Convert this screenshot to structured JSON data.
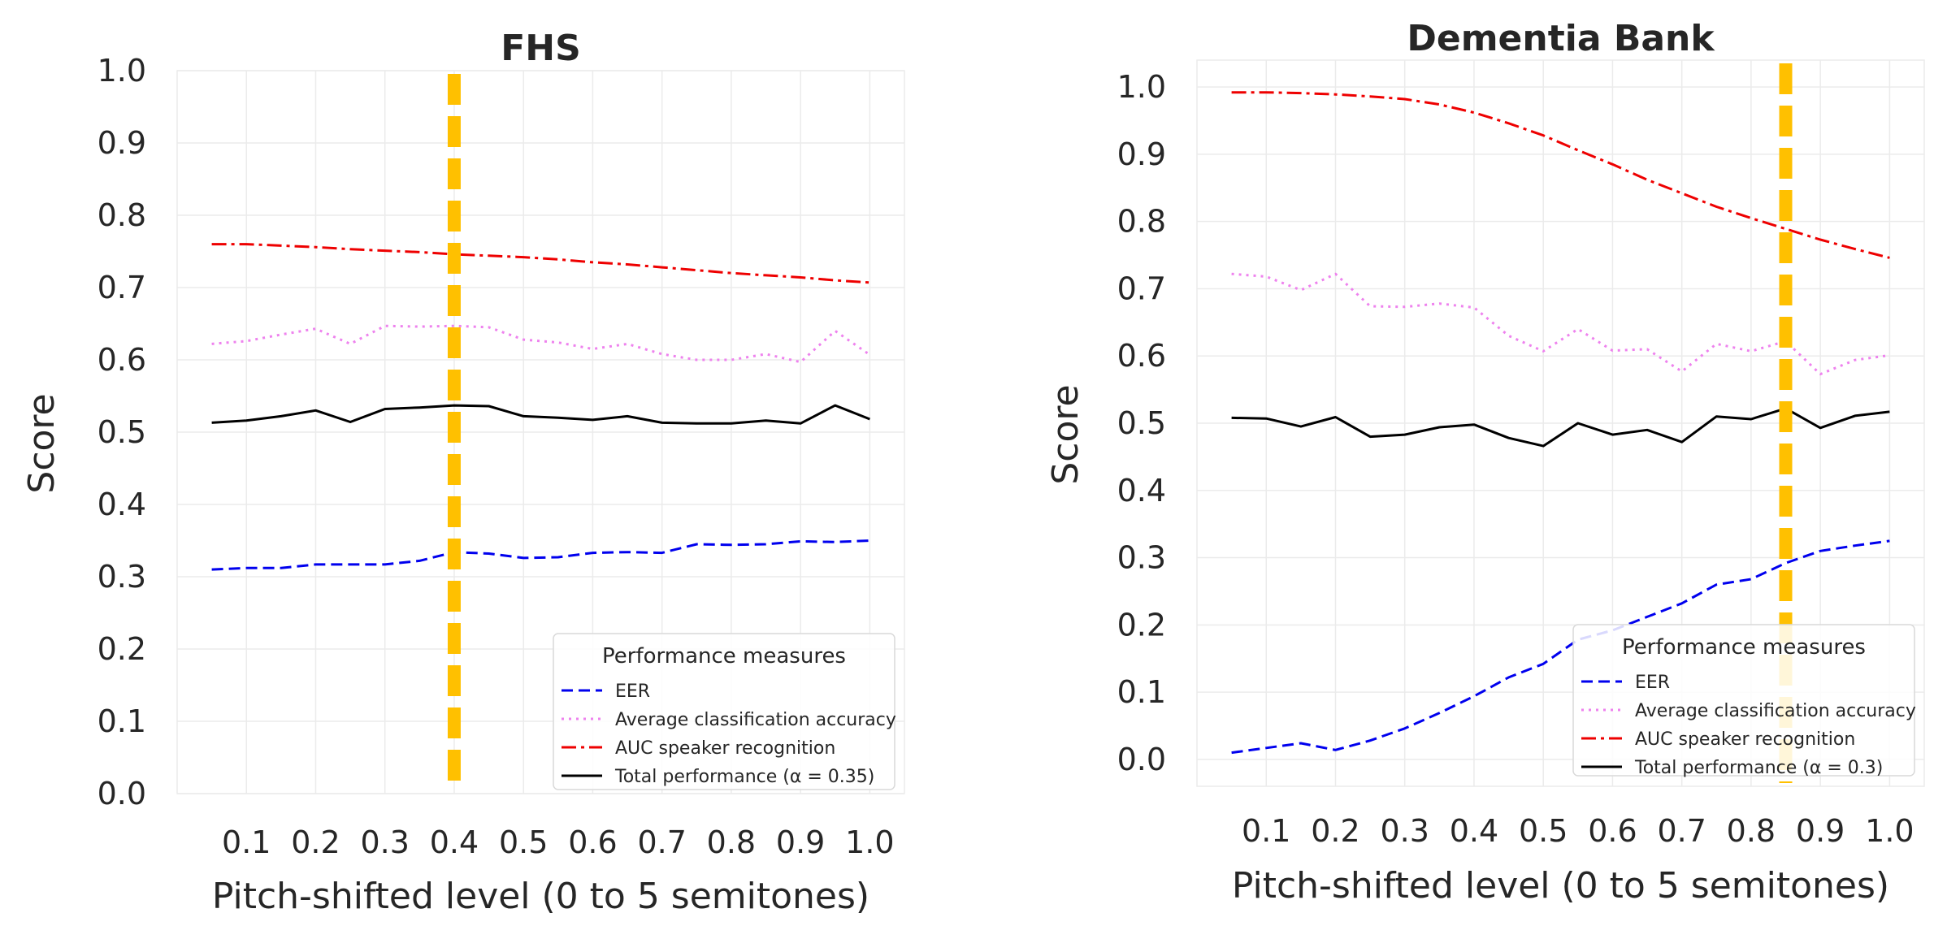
{
  "chart_data": [
    {
      "type": "line",
      "title": "FHS",
      "xlabel": "Pitch-shifted level (0 to 5 semitones)",
      "ylabel": "Score",
      "xlim": [
        0.0,
        1.05
      ],
      "ylim": [
        0.0,
        1.0
      ],
      "grid": true,
      "xticks": [
        "0.1",
        "0.2",
        "0.3",
        "0.4",
        "0.5",
        "0.6",
        "0.7",
        "0.8",
        "0.9",
        "1.0"
      ],
      "yticks": [
        "0.0",
        "0.1",
        "0.2",
        "0.3",
        "0.4",
        "0.5",
        "0.6",
        "0.7",
        "0.8",
        "0.9",
        "1.0"
      ],
      "x": [
        0.05,
        0.1,
        0.15,
        0.2,
        0.25,
        0.3,
        0.35,
        0.4,
        0.45,
        0.5,
        0.55,
        0.6,
        0.65,
        0.7,
        0.75,
        0.8,
        0.85,
        0.9,
        0.95,
        1.0
      ],
      "series": [
        {
          "name": "EER",
          "color": "#0000ee",
          "dash": "dashed",
          "values": [
            0.31,
            0.312,
            0.312,
            0.317,
            0.317,
            0.317,
            0.322,
            0.334,
            0.332,
            0.326,
            0.327,
            0.333,
            0.334,
            0.333,
            0.345,
            0.344,
            0.345,
            0.349,
            0.348,
            0.35
          ]
        },
        {
          "name": "Average classification accuracy",
          "color": "#ee82ee",
          "dash": "dotted",
          "values": [
            0.622,
            0.626,
            0.635,
            0.643,
            0.622,
            0.647,
            0.646,
            0.647,
            0.645,
            0.628,
            0.624,
            0.615,
            0.622,
            0.608,
            0.6,
            0.6,
            0.608,
            0.597,
            0.64,
            0.607
          ]
        },
        {
          "name": "AUC speaker recognition",
          "color": "#ee0000",
          "dash": "dashdot",
          "values": [
            0.76,
            0.76,
            0.758,
            0.756,
            0.753,
            0.751,
            0.749,
            0.746,
            0.744,
            0.742,
            0.739,
            0.735,
            0.732,
            0.728,
            0.724,
            0.72,
            0.717,
            0.714,
            0.71,
            0.707
          ]
        },
        {
          "name": "Total performance (α = 0.35)",
          "color": "#000000",
          "dash": "solid",
          "values": [
            0.513,
            0.516,
            0.522,
            0.53,
            0.514,
            0.532,
            0.534,
            0.537,
            0.536,
            0.522,
            0.52,
            0.517,
            0.522,
            0.513,
            0.512,
            0.512,
            0.516,
            0.512,
            0.537,
            0.518
          ]
        }
      ],
      "marker_x": 0.4,
      "marker_color": "#ffc000",
      "legend": {
        "title": "Performance measures",
        "placement": "lower-right"
      }
    },
    {
      "type": "line",
      "title": "Dementia Bank",
      "xlabel": "Pitch-shifted level (0 to 5 semitones)",
      "ylabel": "Score",
      "xlim": [
        0.0,
        1.05
      ],
      "ylim": [
        -0.04,
        1.04
      ],
      "grid": true,
      "xticks": [
        "0.1",
        "0.2",
        "0.3",
        "0.4",
        "0.5",
        "0.6",
        "0.7",
        "0.8",
        "0.9",
        "1.0"
      ],
      "yticks": [
        "0.0",
        "0.1",
        "0.2",
        "0.3",
        "0.4",
        "0.5",
        "0.6",
        "0.7",
        "0.8",
        "0.9",
        "1.0"
      ],
      "x": [
        0.05,
        0.1,
        0.15,
        0.2,
        0.25,
        0.3,
        0.35,
        0.4,
        0.45,
        0.5,
        0.55,
        0.6,
        0.65,
        0.7,
        0.75,
        0.8,
        0.85,
        0.9,
        0.95,
        1.0
      ],
      "series": [
        {
          "name": "EER",
          "color": "#0000ee",
          "dash": "dashed",
          "values": [
            0.01,
            0.017,
            0.024,
            0.014,
            0.028,
            0.046,
            0.069,
            0.094,
            0.122,
            0.142,
            0.178,
            0.192,
            0.212,
            0.232,
            0.26,
            0.268,
            0.292,
            0.31,
            0.318,
            0.325
          ]
        },
        {
          "name": "Average classification accuracy",
          "color": "#ee82ee",
          "dash": "dotted",
          "values": [
            0.722,
            0.718,
            0.698,
            0.722,
            0.674,
            0.673,
            0.678,
            0.672,
            0.63,
            0.607,
            0.64,
            0.608,
            0.61,
            0.577,
            0.618,
            0.607,
            0.622,
            0.573,
            0.594,
            0.601
          ]
        },
        {
          "name": "AUC speaker recognition",
          "color": "#ee0000",
          "dash": "dashdot",
          "values": [
            0.992,
            0.992,
            0.991,
            0.989,
            0.986,
            0.982,
            0.974,
            0.962,
            0.946,
            0.928,
            0.906,
            0.885,
            0.862,
            0.842,
            0.822,
            0.805,
            0.789,
            0.773,
            0.759,
            0.746
          ]
        },
        {
          "name": "Total performance (α = 0.3)",
          "color": "#000000",
          "dash": "solid",
          "values": [
            0.508,
            0.507,
            0.495,
            0.509,
            0.48,
            0.483,
            0.494,
            0.498,
            0.478,
            0.466,
            0.5,
            0.483,
            0.49,
            0.472,
            0.51,
            0.506,
            0.522,
            0.493,
            0.511,
            0.517
          ]
        }
      ],
      "marker_x": 0.85,
      "marker_color": "#ffc000",
      "legend": {
        "title": "Performance measures",
        "placement": "lower-right"
      }
    }
  ]
}
